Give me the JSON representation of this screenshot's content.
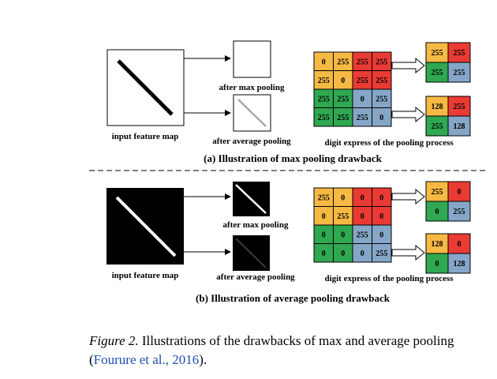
{
  "colors": {
    "orange": "#f6b944",
    "red": "#ea3a34",
    "green": "#2fa851",
    "blue": "#86a6c7",
    "cite": "#1f4fb0"
  },
  "panel_a": {
    "input_label": "input feature map",
    "max_label": "after max pooling",
    "avg_label": "after average pooling",
    "digit_label": "digit express of the pooling process",
    "title": "(a) Illustration of max pooling drawback",
    "grid": [
      [
        "0",
        "255",
        "255",
        "255"
      ],
      [
        "255",
        "0",
        "255",
        "255"
      ],
      [
        "255",
        "255",
        "0",
        "255"
      ],
      [
        "255",
        "255",
        "255",
        "0"
      ]
    ],
    "max_out": [
      [
        "255",
        "255"
      ],
      [
        "255",
        "255"
      ]
    ],
    "avg_out": [
      [
        "128",
        "255"
      ],
      [
        "255",
        "128"
      ]
    ]
  },
  "panel_b": {
    "input_label": "input feature map",
    "max_label": "after max pooling",
    "avg_label": "after average pooling",
    "digit_label": "digit express of the pooling process",
    "title": "(b) Illustration of average pooling drawback",
    "grid": [
      [
        "255",
        "0",
        "0",
        "0"
      ],
      [
        "0",
        "255",
        "0",
        "0"
      ],
      [
        "0",
        "0",
        "255",
        "0"
      ],
      [
        "0",
        "0",
        "0",
        "255"
      ]
    ],
    "max_out": [
      [
        "255",
        "0"
      ],
      [
        "0",
        "255"
      ]
    ],
    "avg_out": [
      [
        "128",
        "0"
      ],
      [
        "0",
        "128"
      ]
    ]
  },
  "caption": {
    "label": "Figure 2.",
    "text": " Illustrations of the drawbacks of max and average pooling (",
    "citation": "Fourure et al., 2016",
    "end": ")."
  }
}
